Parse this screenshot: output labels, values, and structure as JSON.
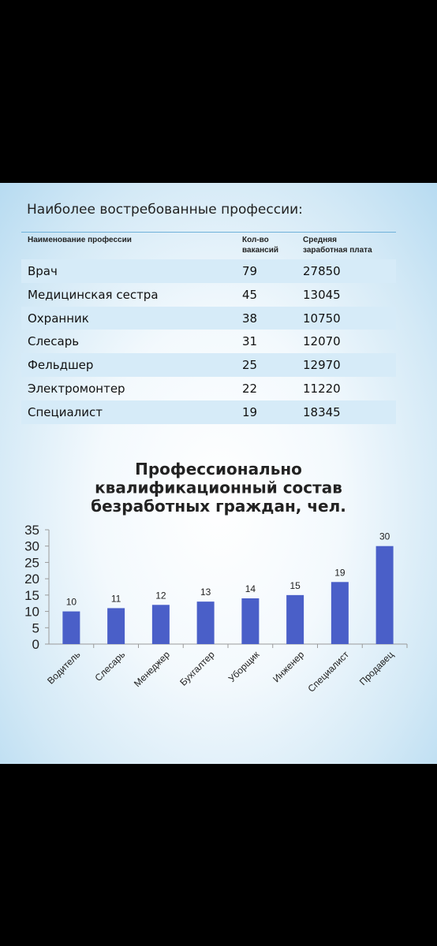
{
  "table": {
    "title": "Наиболее востребованные профессии:",
    "headers": [
      "Наименование профессии",
      "Кол-во\nвакансий",
      "Средняя\nзаработная плата"
    ],
    "rows": [
      {
        "name": "Врач",
        "vacancies": "79",
        "salary": "27850"
      },
      {
        "name": "Медицинская сестра",
        "vacancies": "45",
        "salary": "13045"
      },
      {
        "name": "Охранник",
        "vacancies": "38",
        "salary": "10750"
      },
      {
        "name": "Слесарь",
        "vacancies": "31",
        "salary": "12070"
      },
      {
        "name": "Фельдшер",
        "vacancies": "25",
        "salary": "12970"
      },
      {
        "name": "Электромонтер",
        "vacancies": "22",
        "salary": "11220"
      },
      {
        "name": "Специалист",
        "vacancies": "19",
        "salary": "18345"
      }
    ]
  },
  "chart_data": {
    "type": "bar",
    "title_lines": [
      "Профессионально",
      "квалификационный состав",
      "безработных граждан, чел."
    ],
    "categories": [
      "Водитель",
      "Слесарь",
      "Менеджер",
      "Бухгалтер",
      "Уборщик",
      "Инженер",
      "Специалист",
      "Продавец"
    ],
    "values": [
      10,
      11,
      12,
      13,
      14,
      15,
      19,
      30
    ],
    "ylim": [
      0,
      35
    ],
    "yticks": [
      0,
      5,
      10,
      15,
      20,
      25,
      30,
      35
    ],
    "bar_color": "#4a5fc8",
    "grid": false,
    "legend": "none"
  }
}
